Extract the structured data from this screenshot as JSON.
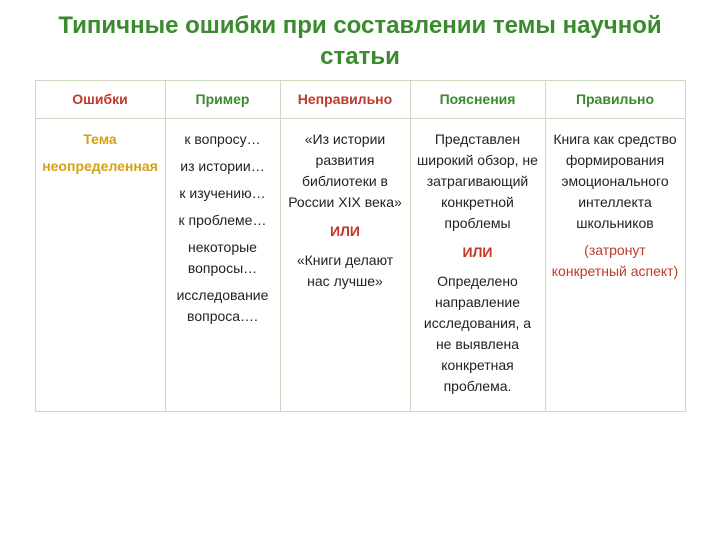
{
  "colors": {
    "green": "#3a8a2e",
    "red": "#c0392b",
    "orange": "#d4a017",
    "black": "#222222",
    "border": "#cfd8c0"
  },
  "title": "Типичные  ошибки при составлении темы научной статьи",
  "columns": {
    "c1": "Ошибки",
    "c2": "Пример",
    "c3": "Неправильно",
    "c4": "Пояснения",
    "c5": "Правильно"
  },
  "row": {
    "label_line1": "Тема",
    "label_line2": "неопределенная",
    "example": {
      "l1": "к вопросу…",
      "l2": "из истории…",
      "l3": "к изучению…",
      "l4": "к проблеме…",
      "l5": "некоторые вопросы…",
      "l6": "исследование вопроса…."
    },
    "wrong": {
      "p1": "«Из истории развития библиотеки в России XIX века»",
      "sep": "ИЛИ",
      "p2": "«Книги делают нас лучше»"
    },
    "explain": {
      "p1": "Представлен широкий обзор, не затрагивающий конкретной проблемы",
      "sep": "ИЛИ",
      "p2": "Определено направление исследования, а не выявлена конкретная проблема."
    },
    "right": {
      "main": "Книга как средство формирования эмоционального интеллекта школьников",
      "paren": "(затронут конкретный аспект)"
    }
  }
}
